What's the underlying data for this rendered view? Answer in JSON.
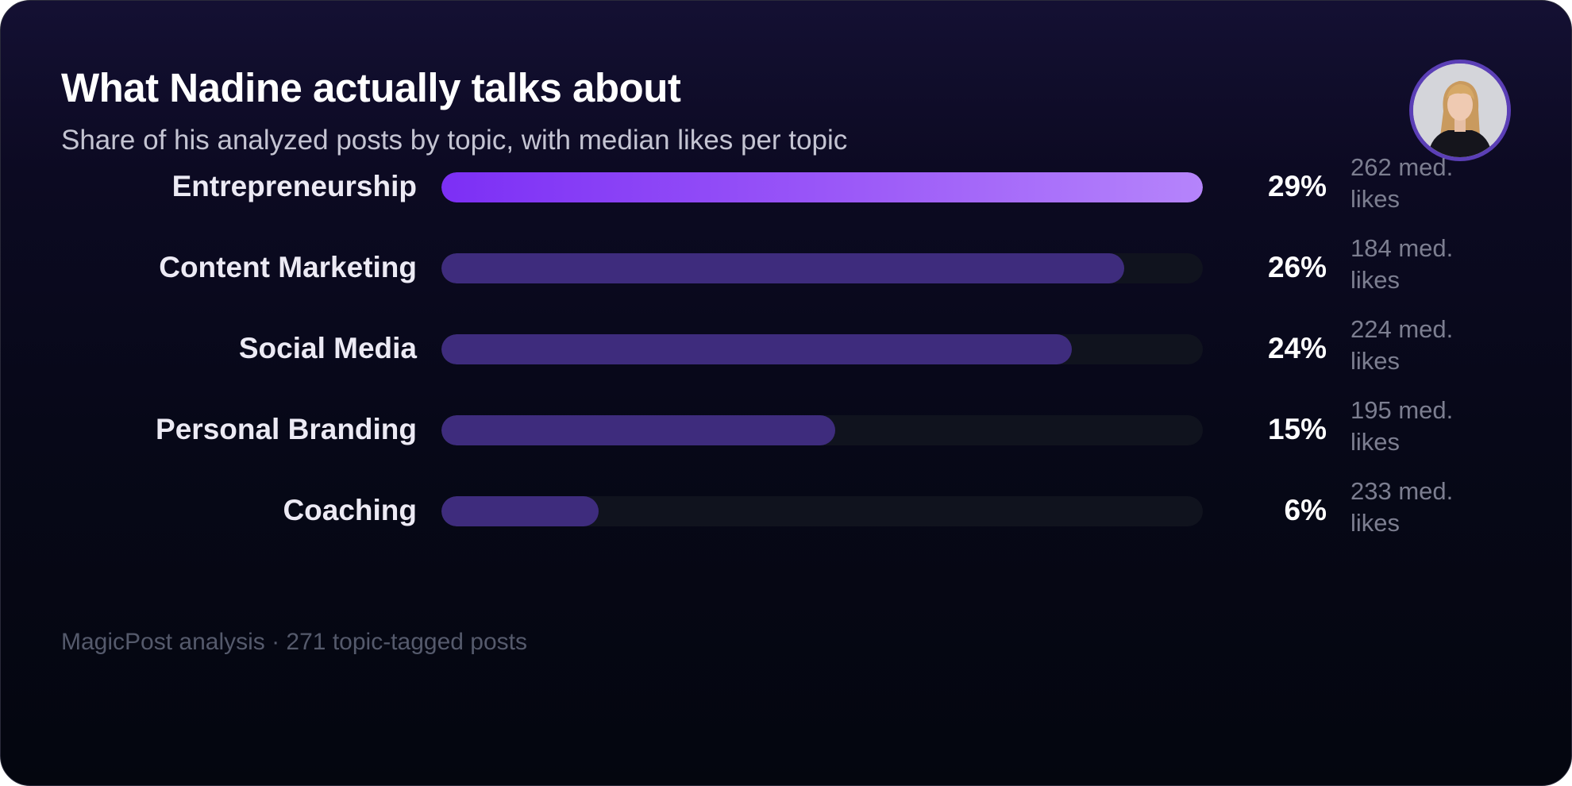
{
  "header": {
    "title": "What Nadine actually talks about",
    "subtitle": "Share of his analyzed posts by topic, with median likes per topic"
  },
  "chart_data": {
    "type": "bar",
    "orientation": "horizontal",
    "categories": [
      "Entrepreneurship",
      "Content Marketing",
      "Social Media",
      "Personal Branding",
      "Coaching"
    ],
    "values": [
      29,
      26,
      24,
      15,
      6
    ],
    "value_labels": [
      "29%",
      "26%",
      "24%",
      "15%",
      "6%"
    ],
    "median_likes_labels": [
      "262 med. likes",
      "184 med. likes",
      "224 med. likes",
      "195 med. likes",
      "233 med. likes"
    ],
    "median_likes": [
      262,
      184,
      224,
      195,
      233
    ],
    "xlim": [
      0,
      29
    ],
    "grid": false,
    "colors": {
      "top_bar_gradient": [
        "#7c2ff5",
        "#b584fb"
      ],
      "bar": "#3e2c7d",
      "track": "#10131e"
    }
  },
  "footer": {
    "source": "MagicPost analysis · 271 topic-tagged posts"
  },
  "avatar": {
    "icon": "person-photo-icon"
  }
}
